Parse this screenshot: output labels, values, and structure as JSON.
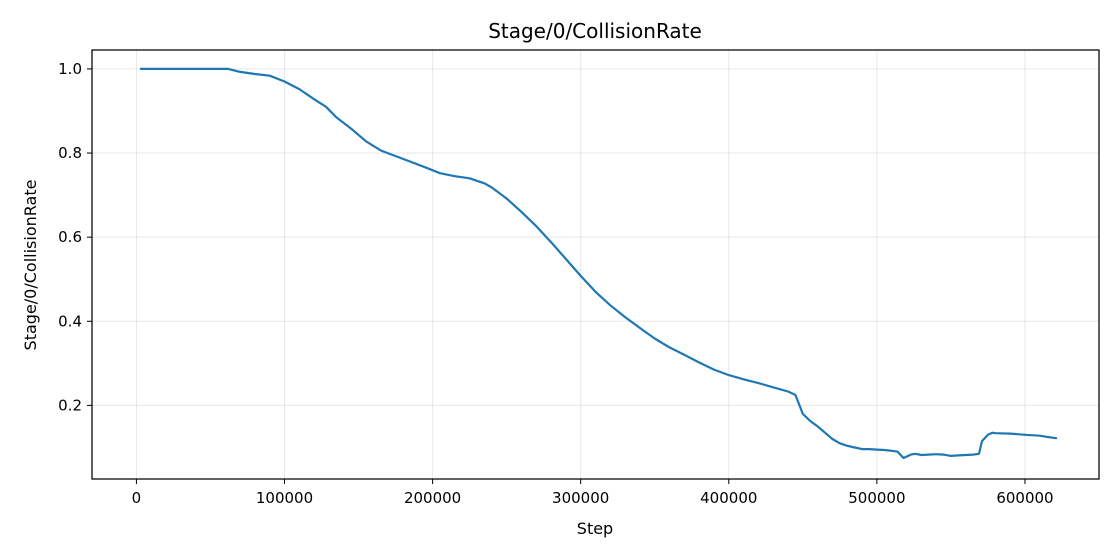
{
  "chart_data": {
    "type": "line",
    "title": "Stage/0/CollisionRate",
    "xlabel": "Step",
    "ylabel": "Stage/0/CollisionRate",
    "xlim": [
      -30000,
      650000
    ],
    "ylim": [
      0.025,
      1.045
    ],
    "xticks": [
      0,
      100000,
      200000,
      300000,
      400000,
      500000,
      600000
    ],
    "xtick_labels": [
      "0",
      "100000",
      "200000",
      "300000",
      "400000",
      "500000",
      "600000"
    ],
    "yticks": [
      0.2,
      0.4,
      0.6,
      0.8,
      1.0
    ],
    "ytick_labels": [
      "0.2",
      "0.4",
      "0.6",
      "0.8",
      "1.0"
    ],
    "grid": true,
    "series": [
      {
        "name": "Stage/0/CollisionRate",
        "color": "#1f77b4",
        "x": [
          3000,
          20000,
          40000,
          62000,
          70000,
          80000,
          90000,
          100000,
          110000,
          120000,
          128000,
          135000,
          145000,
          155000,
          165000,
          180000,
          195000,
          205000,
          215000,
          225000,
          235000,
          240000,
          250000,
          260000,
          270000,
          280000,
          290000,
          300000,
          310000,
          320000,
          330000,
          340000,
          350000,
          360000,
          370000,
          380000,
          390000,
          400000,
          410000,
          420000,
          430000,
          440000,
          445000,
          450000,
          455000,
          460000,
          465000,
          470000,
          475000,
          480000,
          485000,
          490000,
          495000,
          500000,
          505000,
          510000,
          514000,
          518000,
          523000,
          526000,
          530000,
          535000,
          540000,
          545000,
          550000,
          555000,
          560000,
          565000,
          569000,
          571000,
          575000,
          578000,
          580000,
          590000,
          600000,
          610000,
          615000,
          621000
        ],
        "y": [
          1.0,
          1.0,
          1.0,
          1.0,
          0.993,
          0.988,
          0.984,
          0.97,
          0.952,
          0.928,
          0.91,
          0.885,
          0.858,
          0.828,
          0.806,
          0.786,
          0.766,
          0.752,
          0.745,
          0.74,
          0.728,
          0.718,
          0.692,
          0.66,
          0.626,
          0.588,
          0.548,
          0.508,
          0.47,
          0.438,
          0.41,
          0.384,
          0.359,
          0.338,
          0.32,
          0.302,
          0.285,
          0.272,
          0.262,
          0.253,
          0.243,
          0.233,
          0.225,
          0.18,
          0.163,
          0.15,
          0.135,
          0.12,
          0.11,
          0.104,
          0.1,
          0.096,
          0.096,
          0.095,
          0.094,
          0.092,
          0.09,
          0.075,
          0.083,
          0.085,
          0.082,
          0.083,
          0.084,
          0.083,
          0.08,
          0.081,
          0.082,
          0.083,
          0.085,
          0.115,
          0.13,
          0.135,
          0.134,
          0.133,
          0.13,
          0.128,
          0.125,
          0.122
        ]
      }
    ]
  }
}
